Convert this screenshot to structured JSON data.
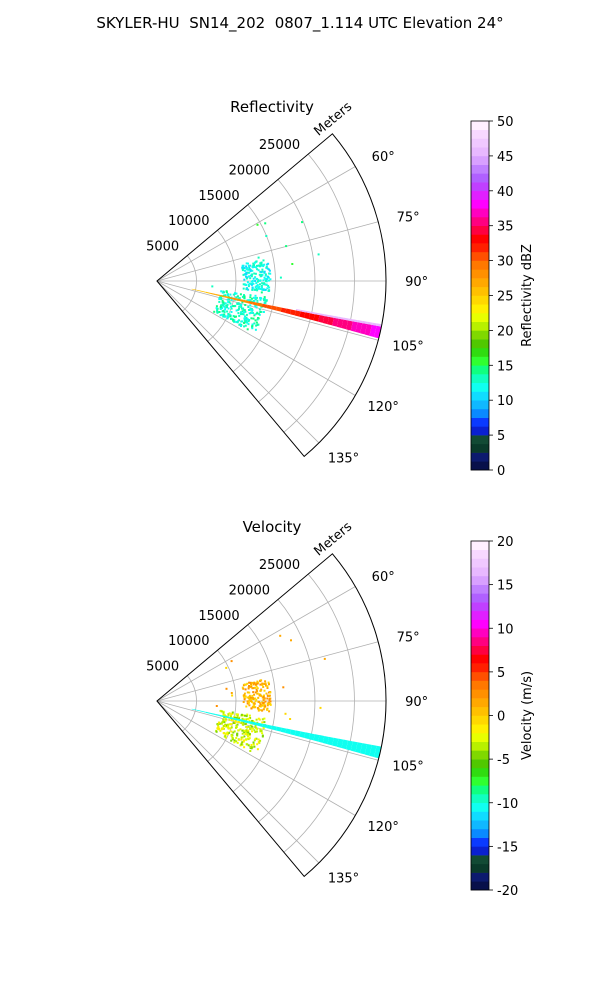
{
  "figure": {
    "suptitle": "SKYLER-HU  SN14_202  0807_1.114 UTC Elevation 24°"
  },
  "chart_data": [
    {
      "type": "polar-sector",
      "title": "Reflectivity",
      "range_label": "Meters",
      "radial_ticks": [
        5000,
        10000,
        15000,
        20000,
        25000
      ],
      "radial_max": 29000,
      "azimuth_range_deg": [
        50,
        140
      ],
      "angle_ticks_deg": [
        60,
        75,
        90,
        105,
        120,
        135
      ],
      "grid": true,
      "colorbar": {
        "label": "Reflectivity dBZ",
        "min": 0,
        "max": 50,
        "ticks": [
          0,
          5,
          10,
          15,
          20,
          25,
          30,
          35,
          40,
          45,
          50
        ],
        "colors": [
          "#08104a",
          "#0c1a6e",
          "#0a3a2a",
          "#124a34",
          "#0a20d0",
          "#0a3aff",
          "#0a8aff",
          "#10b8ff",
          "#10dcff",
          "#10fff0",
          "#10ffc0",
          "#10ff80",
          "#30ff30",
          "#30dc10",
          "#50c800",
          "#80d800",
          "#b8f000",
          "#e8ff00",
          "#fff000",
          "#ffd800",
          "#ffc000",
          "#ffa800",
          "#ff9000",
          "#ff7800",
          "#ff5000",
          "#ff2000",
          "#ff0000",
          "#ff0040",
          "#ff0080",
          "#ff00c0",
          "#ff00ff",
          "#e020ff",
          "#c040ff",
          "#b060ff",
          "#c080ff",
          "#d8a0ff",
          "#e8b8ff",
          "#f0c8ff",
          "#f8d8ff",
          "#fff0ff"
        ]
      },
      "echo_regions": [
        {
          "name": "scattered returns",
          "az_range": [
            78,
            95
          ],
          "r_range": [
            10800,
            14300
          ],
          "value": 12
        },
        {
          "name": "main cluster",
          "az_range": [
            98,
            118
          ],
          "r_range": [
            8000,
            14000
          ],
          "value": 13
        },
        {
          "name": "small speckles",
          "az_range": [
            60,
            100
          ],
          "r_range": [
            4000,
            24000
          ],
          "value": 14
        },
        {
          "name": "strong streak",
          "az_start": 101.5,
          "az_end": 104.5,
          "r_range": [
            4500,
            29000
          ],
          "value_near": 25,
          "value_far": 38
        }
      ]
    },
    {
      "type": "polar-sector",
      "title": "Velocity",
      "range_label": "Meters",
      "radial_ticks": [
        5000,
        10000,
        15000,
        20000,
        25000
      ],
      "radial_max": 29000,
      "azimuth_range_deg": [
        50,
        140
      ],
      "angle_ticks_deg": [
        60,
        75,
        90,
        105,
        120,
        135
      ],
      "grid": true,
      "colorbar": {
        "label": "Velocity (m/s)",
        "min": -20,
        "max": 20,
        "ticks": [
          -20,
          -15,
          -10,
          -5,
          0,
          5,
          10,
          15,
          20
        ],
        "colors": [
          "#08104a",
          "#0c1a6e",
          "#0a3a2a",
          "#124a34",
          "#0a20d0",
          "#0a3aff",
          "#0a8aff",
          "#10b8ff",
          "#10dcff",
          "#10fff0",
          "#10ffc0",
          "#10ff80",
          "#30ff30",
          "#30dc10",
          "#50c800",
          "#80d800",
          "#b8f000",
          "#e8ff00",
          "#fff000",
          "#ffd800",
          "#ffc000",
          "#ffa800",
          "#ff9000",
          "#ff7800",
          "#ff5000",
          "#ff2000",
          "#ff0000",
          "#ff0040",
          "#ff0080",
          "#ff00c0",
          "#ff00ff",
          "#e020ff",
          "#c040ff",
          "#b060ff",
          "#c080ff",
          "#d8a0ff",
          "#e8b8ff",
          "#f0c8ff",
          "#f8d8ff",
          "#fff0ff"
        ]
      },
      "echo_regions": [
        {
          "name": "scattered returns",
          "az_range": [
            78,
            95
          ],
          "r_range": [
            10800,
            14300
          ],
          "value": 1
        },
        {
          "name": "main cluster",
          "az_range": [
            98,
            118
          ],
          "r_range": [
            8000,
            14000
          ],
          "value": -3
        },
        {
          "name": "small speckles",
          "az_range": [
            60,
            100
          ],
          "r_range": [
            4000,
            24000
          ],
          "value": 1
        },
        {
          "name": "strong streak",
          "az_start": 101.5,
          "az_end": 104.5,
          "r_range": [
            4500,
            29000
          ],
          "value_near": -11,
          "value_far": -11
        }
      ]
    }
  ]
}
